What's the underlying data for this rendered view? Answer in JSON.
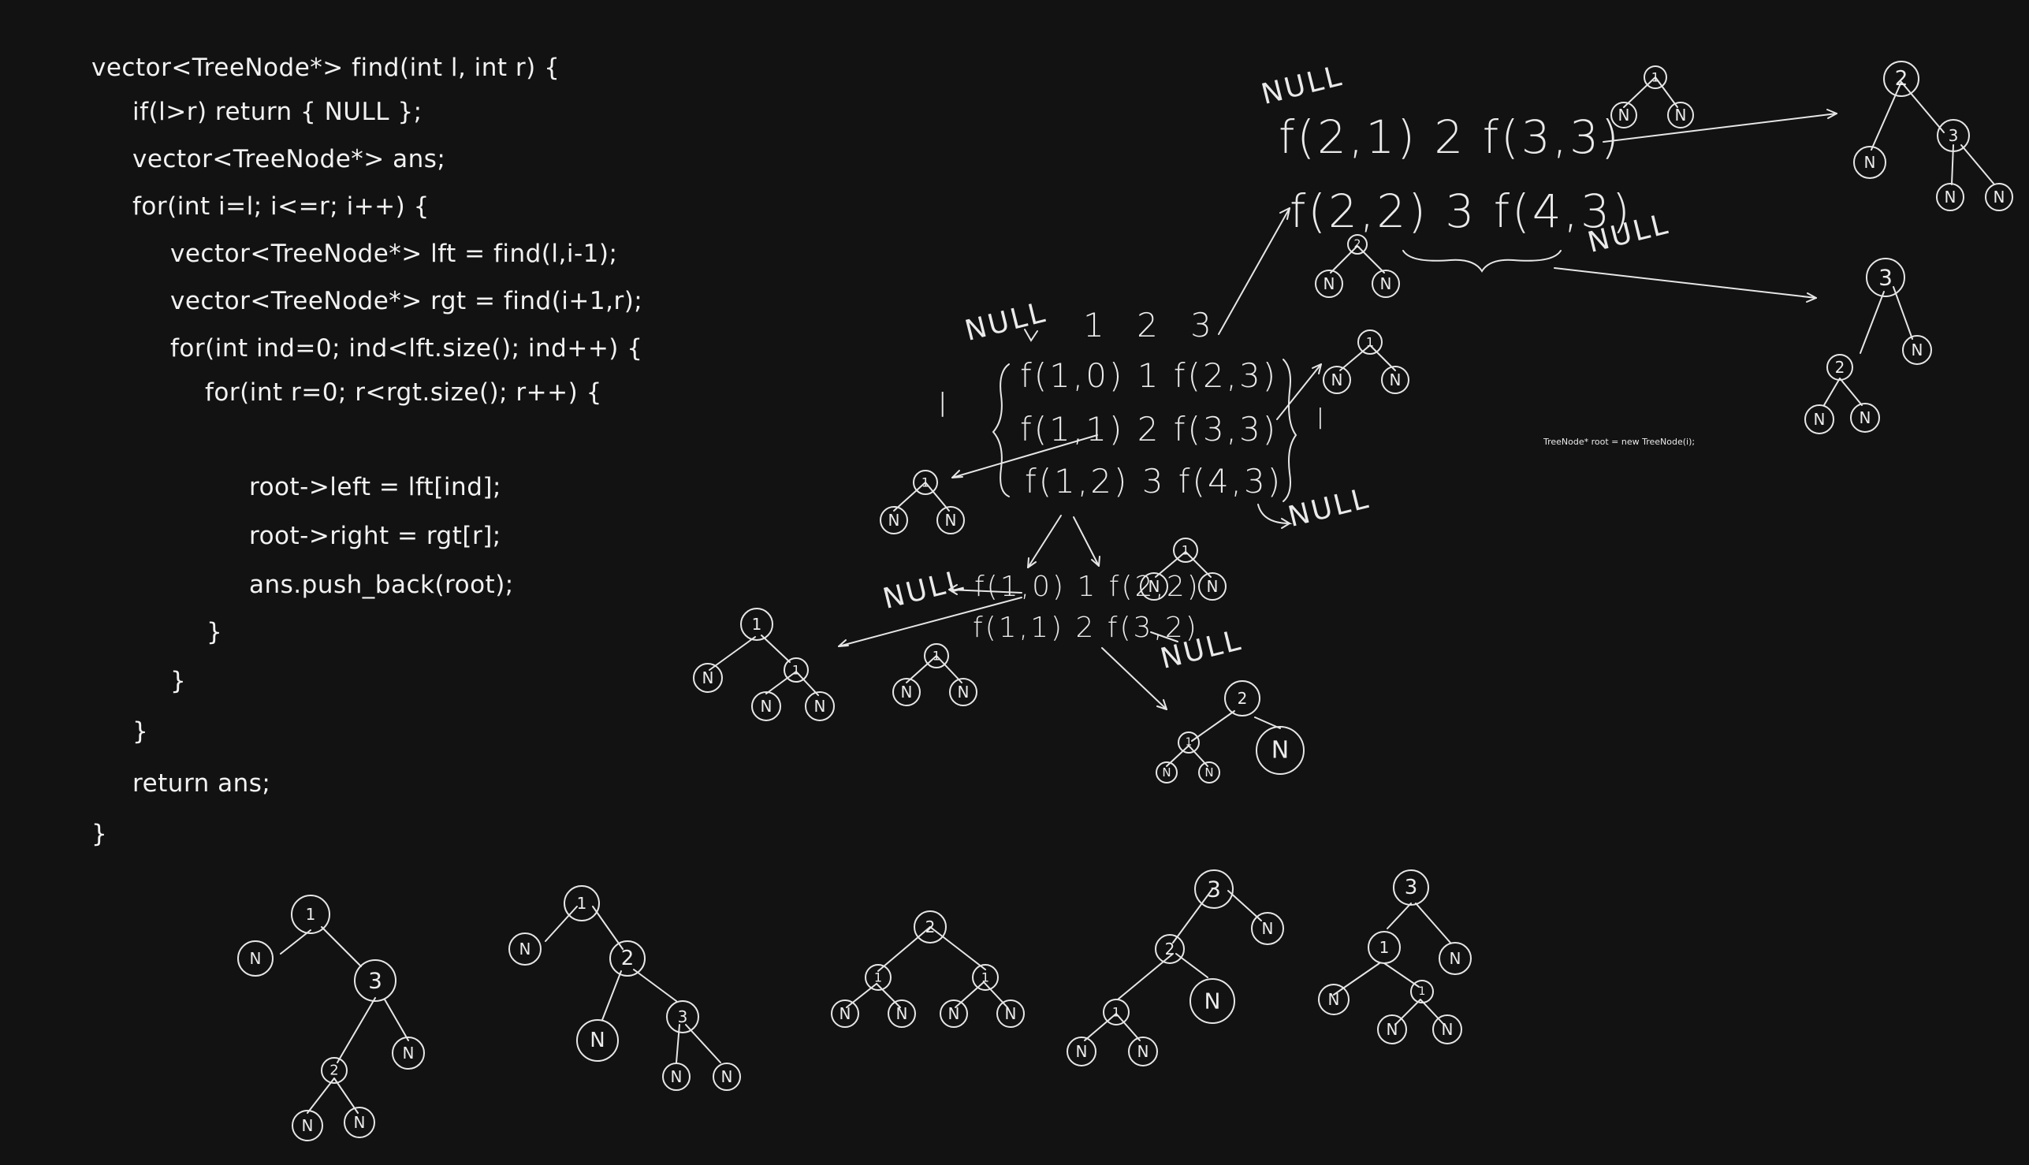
{
  "code": [
    "vector<TreeNode*> find(int l, int r) {",
    "if(l>r) return { NULL };",
    "vector<TreeNode*> ans;",
    "for(int i=l; i<=r; i++) {",
    "vector<TreeNode*> lft = find(l,i-1);",
    "vector<TreeNode*> rgt = find(i+1,r);",
    "for(int ind=0; ind<lft.size(); ind++) {",
    "for(int r=0; r<rgt.size(); r++) {",
    "root->left = lft[ind];",
    "root->right = rgt[r];",
    "ans.push_back(root);",
    "}",
    "}",
    "}",
    "return ans;",
    "}"
  ],
  "annotations": {
    "root_note": "TreeNode* root = new TreeNode(i);",
    "top_row_1": "f(2,1) 2 f(3,3)",
    "top_row_2": "f(2,2) 3 f(4,3)",
    "indices": "1 2 3",
    "mid_row_1": "f(1,0) 1 f(2,3)",
    "mid_row_2": "f(1,1) 2 f(3,3)",
    "mid_row_3": "f(1,2) 3 f(4,3)",
    "low_row_1": "f(1,0) 1 f(2,2)",
    "low_row_2": "f(1,1) 2 f(3,2)",
    "null_label": "NULL",
    "left_brace_label": "l",
    "right_brace_label": "l"
  },
  "node_labels": {
    "n": "N",
    "one": "1",
    "two": "2",
    "three": "3"
  }
}
